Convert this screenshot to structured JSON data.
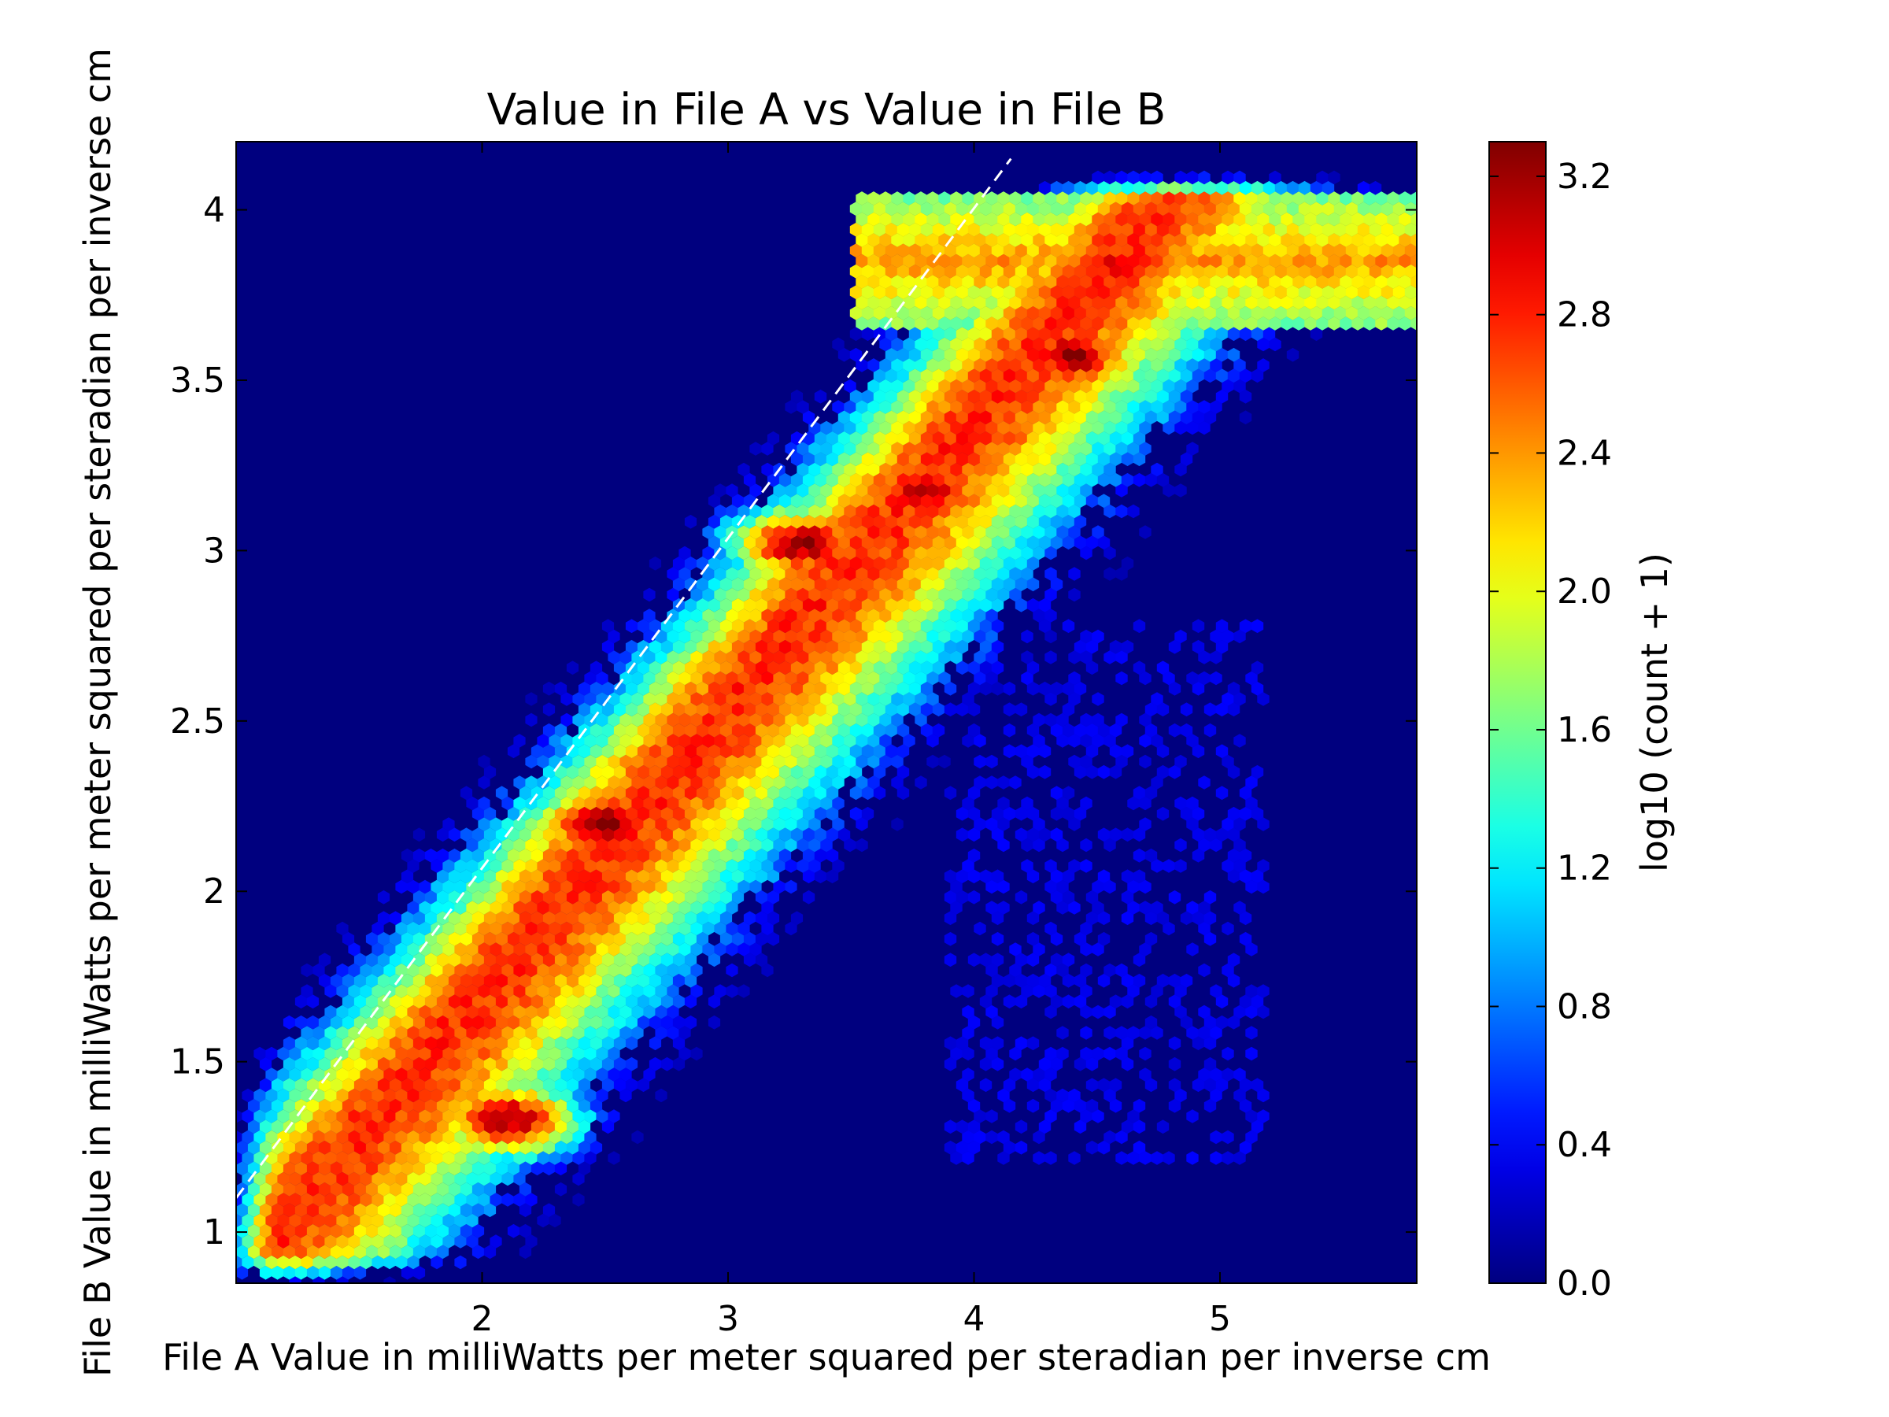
{
  "chart_data": {
    "type": "heatmap",
    "subtype": "hexbin",
    "title": "Value in File A vs Value in File B",
    "xlabel": "File A Value in milliWatts per meter squared per steradian per inverse cm",
    "ylabel": "File B Value in milliWatts per meter squared per steradian per inverse cm",
    "xlim": [
      1.0,
      5.8
    ],
    "ylim": [
      0.85,
      4.2
    ],
    "xticks": [
      2,
      3,
      4,
      5
    ],
    "xtick_labels": [
      "2",
      "3",
      "4",
      "5"
    ],
    "yticks": [
      1.0,
      1.5,
      2.0,
      2.5,
      3.0,
      3.5,
      4.0
    ],
    "ytick_labels": [
      "1",
      "1.5",
      "2",
      "2.5",
      "3",
      "3.5",
      "4"
    ],
    "reference_line": {
      "style": "white dashed",
      "x": [
        1.0,
        4.15
      ],
      "y": [
        1.1,
        4.15
      ]
    },
    "colorbar": {
      "label": "log10 (count + 1)",
      "range": [
        0.0,
        3.3
      ],
      "ticks": [
        0.0,
        0.4,
        0.8,
        1.2,
        1.6,
        2.0,
        2.4,
        2.8,
        3.2
      ],
      "tick_labels": [
        "0.0",
        "0.4",
        "0.8",
        "1.2",
        "1.6",
        "2.0",
        "2.4",
        "2.8",
        "3.2"
      ],
      "colormap": "jet"
    },
    "background_color": "#00007f",
    "gridsize": 100,
    "density_peaks": [
      {
        "x": 2.1,
        "y": 1.33,
        "value": 3.2
      },
      {
        "x": 2.5,
        "y": 2.2,
        "value": 3.25
      },
      {
        "x": 3.3,
        "y": 3.02,
        "value": 3.2
      },
      {
        "x": 3.8,
        "y": 3.18,
        "value": 3.15
      },
      {
        "x": 4.4,
        "y": 3.57,
        "value": 3.2
      },
      {
        "x": 4.6,
        "y": 3.85,
        "value": 3.0
      }
    ]
  }
}
